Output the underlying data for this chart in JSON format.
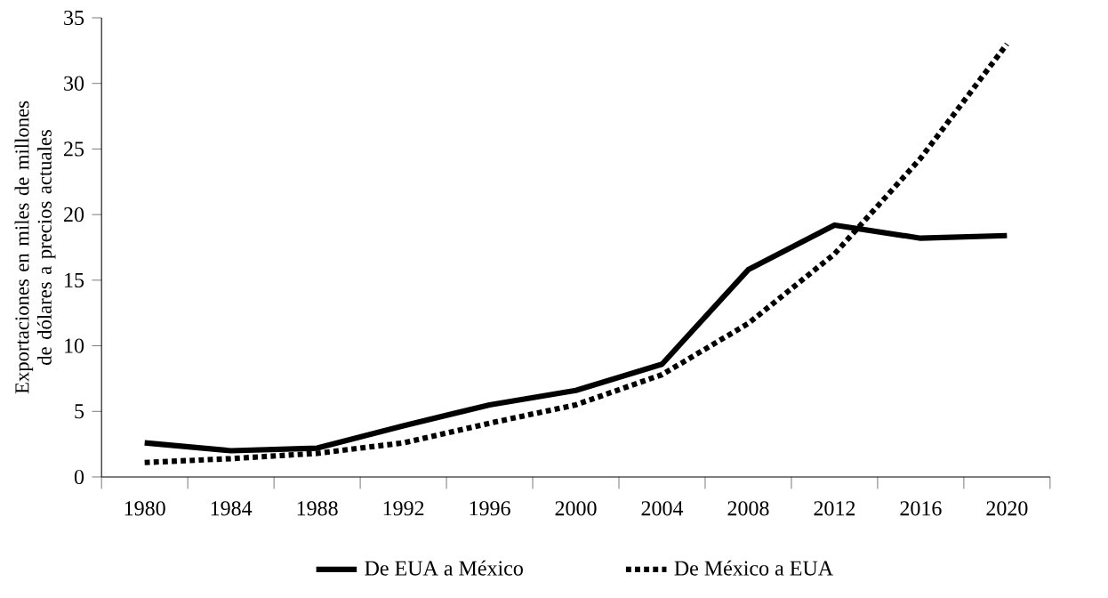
{
  "chart_data": {
    "type": "line",
    "ylabel": "Exportaciones en miles de  millones de dólares a precios actuales",
    "categories": [
      "1980",
      "1984",
      "1988",
      "1992",
      "1996",
      "2000",
      "2004",
      "2008",
      "2012",
      "2016",
      "2020"
    ],
    "ylim": [
      0,
      35
    ],
    "yticks": [
      0,
      5,
      10,
      15,
      20,
      25,
      30,
      35
    ],
    "legend": "bottom",
    "grid": false,
    "series": [
      {
        "name": "De EUA a México",
        "color": "#000000",
        "line_style": "solid",
        "values": [
          2.6,
          2.0,
          2.2,
          3.9,
          5.5,
          6.6,
          8.6,
          15.8,
          19.2,
          18.2,
          18.4
        ]
      },
      {
        "name": "De México a EUA",
        "color": "#000000",
        "line_style": "dotted",
        "values": [
          1.1,
          1.4,
          1.8,
          2.6,
          4.1,
          5.5,
          7.8,
          11.7,
          17.0,
          24.3,
          33.0
        ]
      }
    ]
  }
}
